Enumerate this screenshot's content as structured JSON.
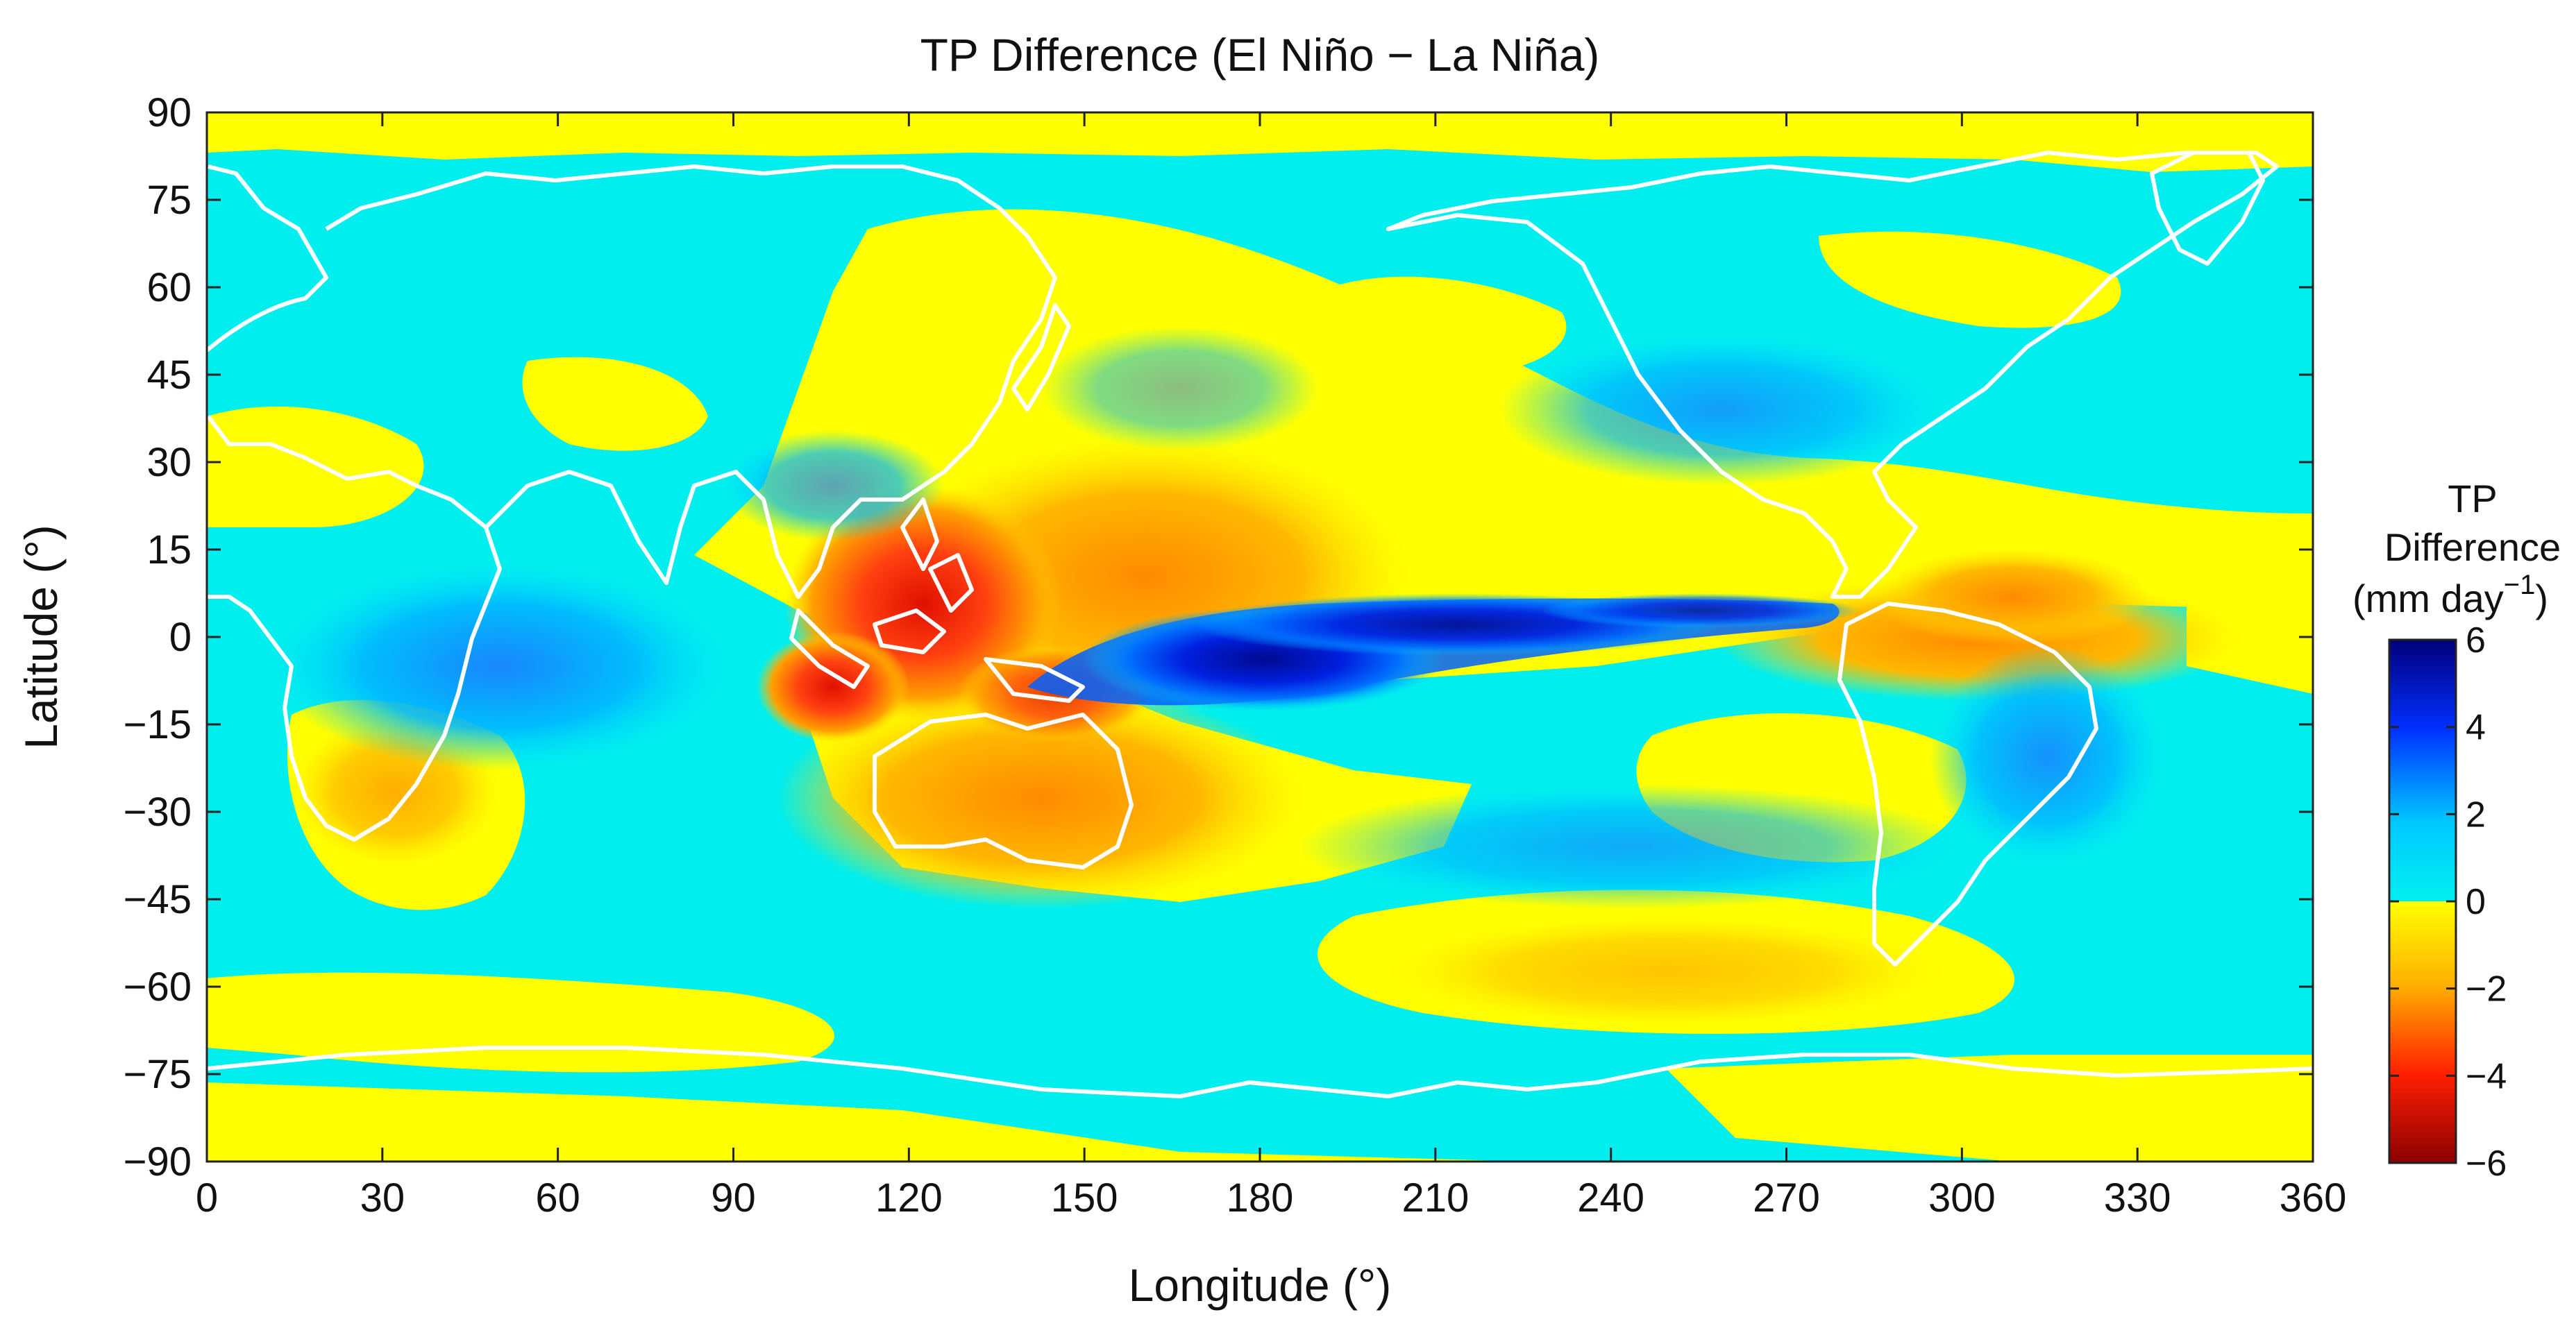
{
  "title": "TP Difference (El Niño − La Niña)",
  "map": {
    "projection": "equirectangular",
    "lon_range": [
      0,
      360
    ],
    "lat_range": [
      -90,
      90
    ],
    "coastline_color": "#ffffff"
  },
  "axes": {
    "xlabel": "Longitude (°)",
    "ylabel": "Latitude (°)",
    "xticks": [
      "0",
      "30",
      "60",
      "90",
      "120",
      "150",
      "180",
      "210",
      "240",
      "270",
      "300",
      "330",
      "360"
    ],
    "yticks": [
      "90",
      "75",
      "60",
      "45",
      "30",
      "15",
      "0",
      "−15",
      "−30",
      "−45",
      "−60",
      "−75",
      "−90"
    ]
  },
  "colorbar": {
    "title_lines": [
      "TP",
      "Difference",
      "(mm day"
    ],
    "title_superscript": "−1",
    "title_close": ")",
    "range": [
      -6,
      6
    ],
    "tick_labels": [
      "6",
      "4",
      "2",
      "0",
      "−2",
      "−4",
      "−6"
    ],
    "colors": {
      "pos_high": "#00007a",
      "pos_mid": "#0030ff",
      "pos_low": "#00c8ff",
      "pos_zero": "#00f0f0",
      "neg_zero": "#ffff00",
      "neg_low": "#ffb000",
      "neg_mid": "#ff2000",
      "neg_high": "#8b0000"
    }
  },
  "palette": {
    "positive_bg": "#00eeee",
    "negative_bg": "#ffff00",
    "strong_positive": "#0010d0",
    "strong_negative": "#ff3010"
  }
}
